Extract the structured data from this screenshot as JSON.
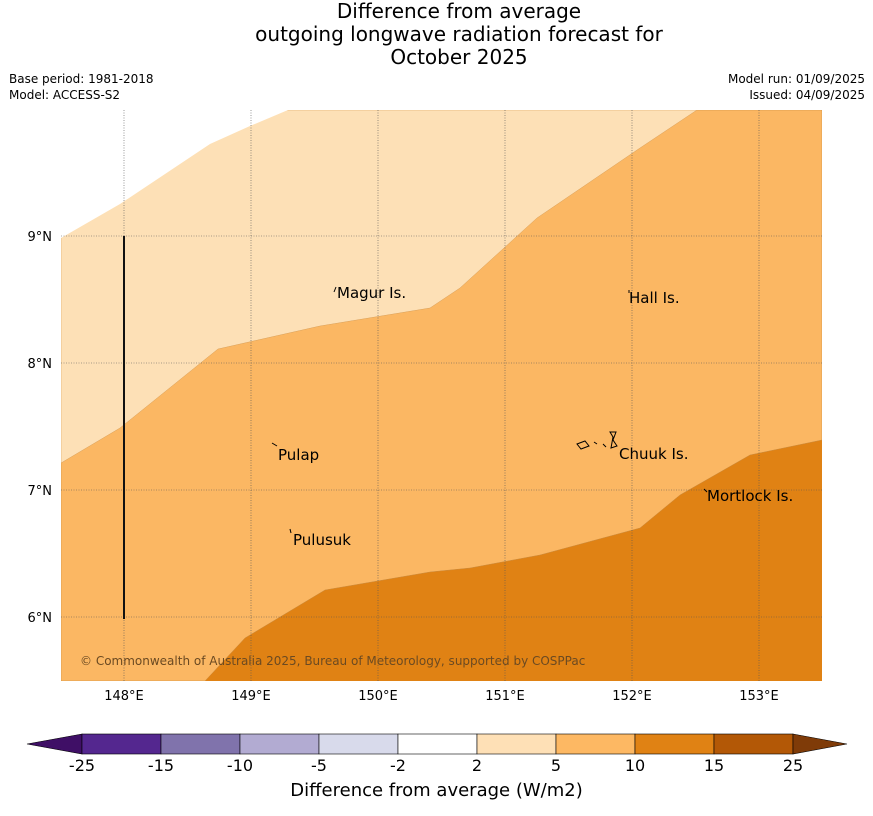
{
  "title": {
    "line1": "Difference from average",
    "line2": "outgoing longwave radiation forecast for",
    "line3": "October 2025"
  },
  "meta": {
    "base_period": "Base period: 1981-2018",
    "model": "Model: ACCESS-S2",
    "model_run": "Model run: 01/09/2025",
    "issued": "Issued: 04/09/2025"
  },
  "map": {
    "lon_labels": [
      "148°E",
      "149°E",
      "150°E",
      "151°E",
      "152°E",
      "153°E"
    ],
    "lat_labels": [
      "9°N",
      "8°N",
      "7°N",
      "6°N"
    ],
    "places": [
      {
        "name": "Magur Is."
      },
      {
        "name": "Hall Is."
      },
      {
        "name": "Pulap"
      },
      {
        "name": "Chuuk Is."
      },
      {
        "name": "Mortlock Is."
      },
      {
        "name": "Pulusuk"
      }
    ],
    "copyright": "© Commonwealth of Australia 2025, Bureau of Meteorology, supported by COSPPac"
  },
  "colorbar": {
    "title": "Difference from average (W/m2)",
    "labels": [
      "-25",
      "-15",
      "-10",
      "-5",
      "-2",
      "2",
      "5",
      "10",
      "15",
      "25"
    ],
    "colors": [
      "#3f0f66",
      "#54278f",
      "#8073ac",
      "#b2abd2",
      "#d8daeb",
      "#ffffff",
      "#fee0b6",
      "#fdb863",
      "#e08214",
      "#b35806",
      "#7f3b08"
    ]
  }
}
